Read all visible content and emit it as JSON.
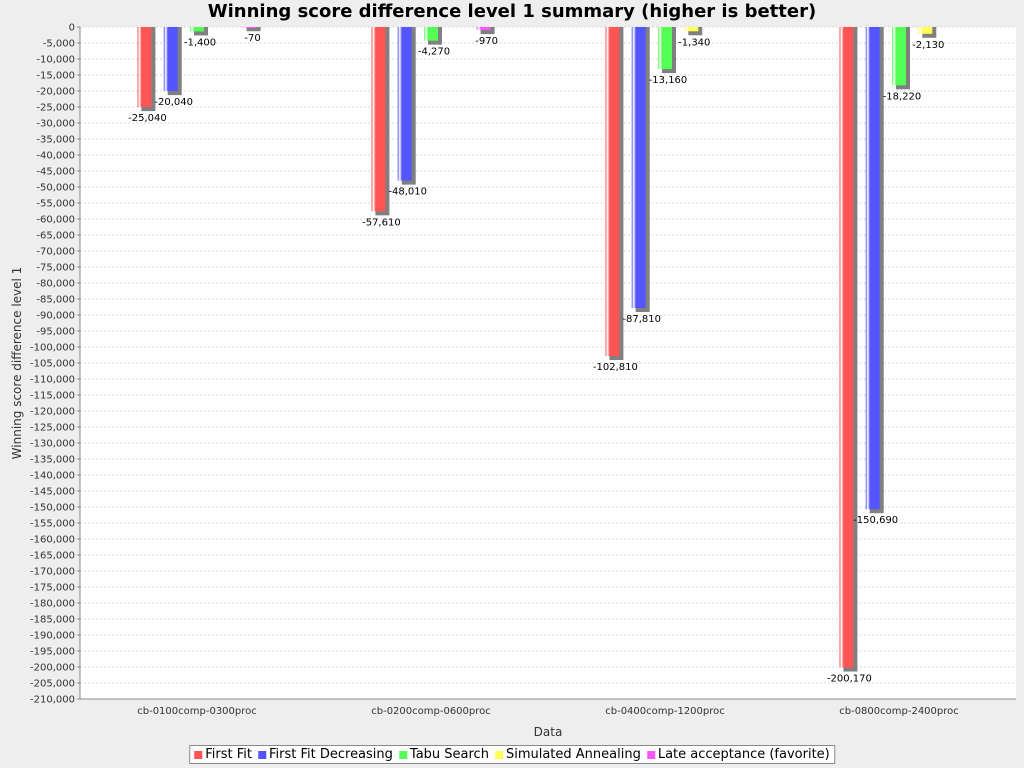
{
  "chart_data": {
    "type": "bar",
    "title": "Winning score difference level 1 summary (higher is better)",
    "xlabel": "Data",
    "ylabel": "Winning score difference level 1",
    "ylim": [
      -210000,
      0
    ],
    "ytick_step": 5000,
    "grid": true,
    "legend_position": "bottom",
    "categories": [
      "cb-0100comp-0300proc",
      "cb-0200comp-0600proc",
      "cb-0400comp-1200proc",
      "cb-0800comp-2400proc"
    ],
    "series": [
      {
        "name": "First Fit",
        "color": "#ff5555",
        "values": [
          -25040,
          -57610,
          -102810,
          -200170
        ]
      },
      {
        "name": "First Fit Decreasing",
        "color": "#5555ff",
        "values": [
          -20040,
          -48010,
          -87810,
          -150690
        ]
      },
      {
        "name": "Tabu Search",
        "color": "#55ff55",
        "values": [
          -1400,
          -4270,
          -13160,
          -18220
        ]
      },
      {
        "name": "Simulated Annealing",
        "color": "#ffff55",
        "values": [
          null,
          null,
          -1340,
          -2130
        ]
      },
      {
        "name": "Late acceptance (favorite)",
        "color": "#ff55ff",
        "values": [
          -70,
          -970,
          null,
          null
        ]
      }
    ]
  }
}
